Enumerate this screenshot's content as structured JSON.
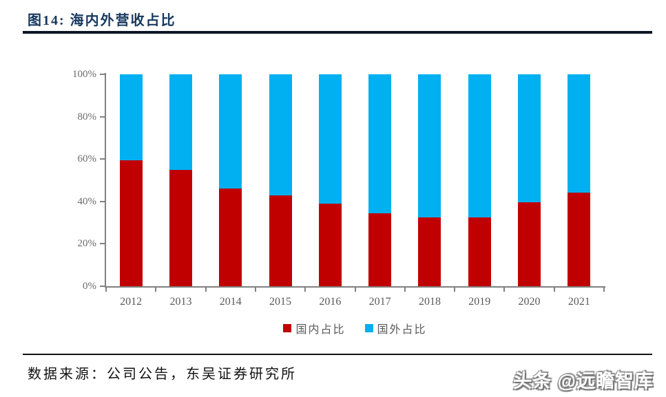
{
  "figure": {
    "title": "图14:  海内外营收占比",
    "source_note": "数据来源：公司公告，东吴证券研究所",
    "watermark": "头条 @远瞻智库"
  },
  "colors": {
    "title_navy": "#17375E",
    "rule_dark": "#0d1626",
    "axis_gray": "#808080",
    "tick_label_gray": "#595959",
    "domestic_red": "#C00000",
    "overseas_blue": "#00B0F0"
  },
  "chart_data": {
    "type": "bar",
    "stacked": true,
    "percent_stacked": true,
    "title": "海内外营收占比",
    "categories": [
      "2012",
      "2013",
      "2014",
      "2015",
      "2016",
      "2017",
      "2018",
      "2019",
      "2020",
      "2021"
    ],
    "series": [
      {
        "name": "国内占比",
        "color": "#C00000",
        "values": [
          59.5,
          55,
          46,
          43,
          39,
          34.5,
          32.5,
          32.5,
          39.5,
          44
        ]
      },
      {
        "name": "国外占比",
        "color": "#00B0F0",
        "values": [
          40.5,
          45,
          54,
          57,
          61,
          65.5,
          67.5,
          67.5,
          60.5,
          56
        ]
      }
    ],
    "xlabel": "",
    "ylabel": "",
    "ylim": [
      0,
      100
    ],
    "yticks": [
      "0%",
      "20%",
      "40%",
      "60%",
      "80%",
      "100%"
    ],
    "ytick_step_percent": 20,
    "grid": false,
    "legend_position": "bottom"
  }
}
